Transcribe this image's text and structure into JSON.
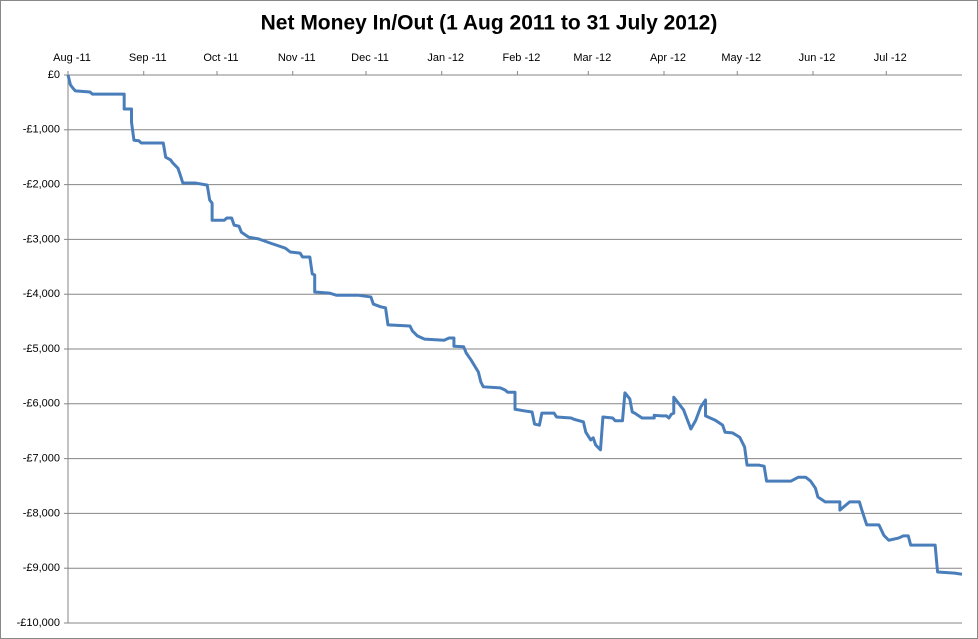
{
  "chart_data": {
    "type": "line",
    "title": "Net Money In/Out (1 Aug 2011 to 31 July 2012)",
    "x": [
      0,
      1,
      2,
      3,
      9,
      10,
      23,
      23,
      26,
      26,
      27,
      29,
      30,
      39,
      40,
      42,
      43,
      45,
      46,
      47,
      52,
      57,
      58,
      59,
      59,
      64,
      65,
      67,
      68,
      70,
      71,
      74,
      78,
      83,
      85,
      89,
      91,
      95,
      96,
      99,
      100,
      101,
      101,
      107,
      110,
      119,
      124,
      125,
      128,
      130,
      131,
      140,
      141,
      143,
      146,
      154,
      156,
      158,
      158,
      162,
      163,
      165,
      168,
      169,
      170,
      177,
      179,
      180,
      183,
      183,
      187,
      190,
      191,
      193,
      194,
      199,
      200,
      206,
      207,
      211,
      212,
      214,
      215,
      216,
      218,
      219,
      223,
      224,
      227,
      228,
      230,
      231,
      232,
      235,
      240,
      240,
      243,
      245,
      246,
      247,
      248,
      248,
      252,
      255,
      257,
      259,
      261,
      261,
      265,
      268,
      269,
      272,
      275,
      277,
      278,
      283,
      285,
      286,
      296,
      299,
      302,
      304,
      306,
      307,
      310,
      316,
      316,
      320,
      324,
      325,
      327,
      332,
      334,
      336,
      340,
      342,
      344,
      345,
      355,
      356,
      363,
      366
    ],
    "series": [
      {
        "color": "#4a7ebb",
        "values": [
          0,
          -180,
          -240,
          -290,
          -310,
          -350,
          -350,
          -620,
          -620,
          -860,
          -1190,
          -1200,
          -1240,
          -1240,
          -1500,
          -1550,
          -1610,
          -1700,
          -1830,
          -1970,
          -1970,
          -2010,
          -2280,
          -2340,
          -2650,
          -2650,
          -2610,
          -2610,
          -2740,
          -2760,
          -2870,
          -2960,
          -2990,
          -3070,
          -3100,
          -3160,
          -3230,
          -3250,
          -3320,
          -3320,
          -3630,
          -3650,
          -3960,
          -3980,
          -4020,
          -4020,
          -4050,
          -4180,
          -4230,
          -4250,
          -4560,
          -4580,
          -4670,
          -4760,
          -4820,
          -4840,
          -4800,
          -4800,
          -4950,
          -4960,
          -5070,
          -5200,
          -5420,
          -5600,
          -5690,
          -5710,
          -5750,
          -5790,
          -5790,
          -6100,
          -6130,
          -6150,
          -6370,
          -6390,
          -6170,
          -6170,
          -6240,
          -6260,
          -6280,
          -6330,
          -6520,
          -6660,
          -6620,
          -6750,
          -6840,
          -6240,
          -6260,
          -6310,
          -6310,
          -5800,
          -5910,
          -6150,
          -6170,
          -6260,
          -6260,
          -6210,
          -6220,
          -6220,
          -6260,
          -6190,
          -6170,
          -5880,
          -6110,
          -6460,
          -6300,
          -6060,
          -5930,
          -6220,
          -6300,
          -6390,
          -6520,
          -6530,
          -6610,
          -6790,
          -7120,
          -7120,
          -7140,
          -7410,
          -7410,
          -7340,
          -7340,
          -7410,
          -7540,
          -7700,
          -7790,
          -7790,
          -7940,
          -7790,
          -7790,
          -7940,
          -8210,
          -8210,
          -8400,
          -8490,
          -8450,
          -8410,
          -8410,
          -8580,
          -8580,
          -9070,
          -9090,
          -9110
        ]
      }
    ],
    "xlim": [
      0,
      366
    ],
    "xticks": [
      {
        "value": 0,
        "label": "Aug -11"
      },
      {
        "value": 31,
        "label": "Sep -11"
      },
      {
        "value": 61,
        "label": "Oct -11"
      },
      {
        "value": 92,
        "label": "Nov -11"
      },
      {
        "value": 122,
        "label": "Dec -11"
      },
      {
        "value": 153,
        "label": "Jan -12"
      },
      {
        "value": 184,
        "label": "Feb -12"
      },
      {
        "value": 213,
        "label": "Mar -12"
      },
      {
        "value": 244,
        "label": "Apr -12"
      },
      {
        "value": 274,
        "label": "May -12"
      },
      {
        "value": 305,
        "label": "Jun -12"
      },
      {
        "value": 335,
        "label": "Jul -12"
      }
    ],
    "ylim": [
      -10000,
      0
    ],
    "yticks": [
      {
        "value": 0,
        "label": "£0"
      },
      {
        "value": -1000,
        "label": "-£1,000"
      },
      {
        "value": -2000,
        "label": "-£2,000"
      },
      {
        "value": -3000,
        "label": "-£3,000"
      },
      {
        "value": -4000,
        "label": "-£4,000"
      },
      {
        "value": -5000,
        "label": "-£5,000"
      },
      {
        "value": -6000,
        "label": "-£6,000"
      },
      {
        "value": -7000,
        "label": "-£7,000"
      },
      {
        "value": -8000,
        "label": "-£8,000"
      },
      {
        "value": -9000,
        "label": "-£9,000"
      },
      {
        "value": -10000,
        "label": "-£10,000"
      }
    ],
    "grid": true
  }
}
